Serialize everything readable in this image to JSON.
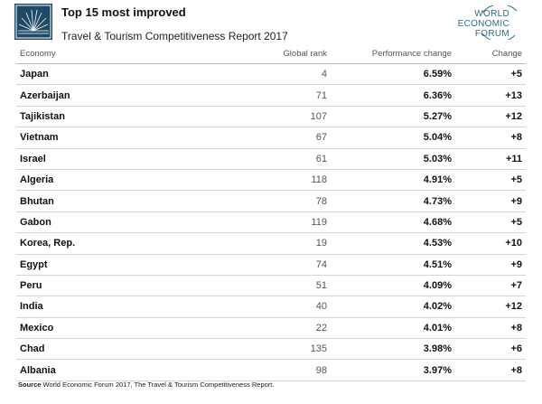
{
  "header": {
    "title": "Top 15 most improved",
    "subtitle": "Travel & Tourism Competitiveness Report 2017",
    "logo_lines": [
      "WORLD",
      "ECONOMIC",
      "FORUM"
    ],
    "accent_color": "#1d4a64",
    "logo_color": "#2d6b8f"
  },
  "table": {
    "headers": {
      "economy": "Economy",
      "rank": "Global rank",
      "performance": "Performance change",
      "change": "Change"
    },
    "rows": [
      {
        "economy": "Japan",
        "rank": "4",
        "performance": "6.59%",
        "change": "+5"
      },
      {
        "economy": "Azerbaijan",
        "rank": "71",
        "performance": "6.36%",
        "change": "+13"
      },
      {
        "economy": "Tajikistan",
        "rank": "107",
        "performance": "5.27%",
        "change": "+12"
      },
      {
        "economy": "Vietnam",
        "rank": "67",
        "performance": "5.04%",
        "change": "+8"
      },
      {
        "economy": "Israel",
        "rank": "61",
        "performance": "5.03%",
        "change": "+11"
      },
      {
        "economy": "Algeria",
        "rank": "118",
        "performance": "4.91%",
        "change": "+5"
      },
      {
        "economy": "Bhutan",
        "rank": "78",
        "performance": "4.73%",
        "change": "+9"
      },
      {
        "economy": "Gabon",
        "rank": "119",
        "performance": "4.68%",
        "change": "+5"
      },
      {
        "economy": "Korea, Rep.",
        "rank": "19",
        "performance": "4.53%",
        "change": "+10"
      },
      {
        "economy": "Egypt",
        "rank": "74",
        "performance": "4.51%",
        "change": "+9"
      },
      {
        "economy": "Peru",
        "rank": "51",
        "performance": "4.09%",
        "change": "+7"
      },
      {
        "economy": "India",
        "rank": "40",
        "performance": "4.02%",
        "change": "+12"
      },
      {
        "economy": "Mexico",
        "rank": "22",
        "performance": "4.01%",
        "change": "+8"
      },
      {
        "economy": "Chad",
        "rank": "135",
        "performance": "3.98%",
        "change": "+6"
      },
      {
        "economy": "Albania",
        "rank": "98",
        "performance": "3.97%",
        "change": "+8"
      }
    ]
  },
  "source": {
    "label": "Source",
    "text": "World Economic Forum 2017, The Travel & Tourism Competitiveness Report."
  }
}
